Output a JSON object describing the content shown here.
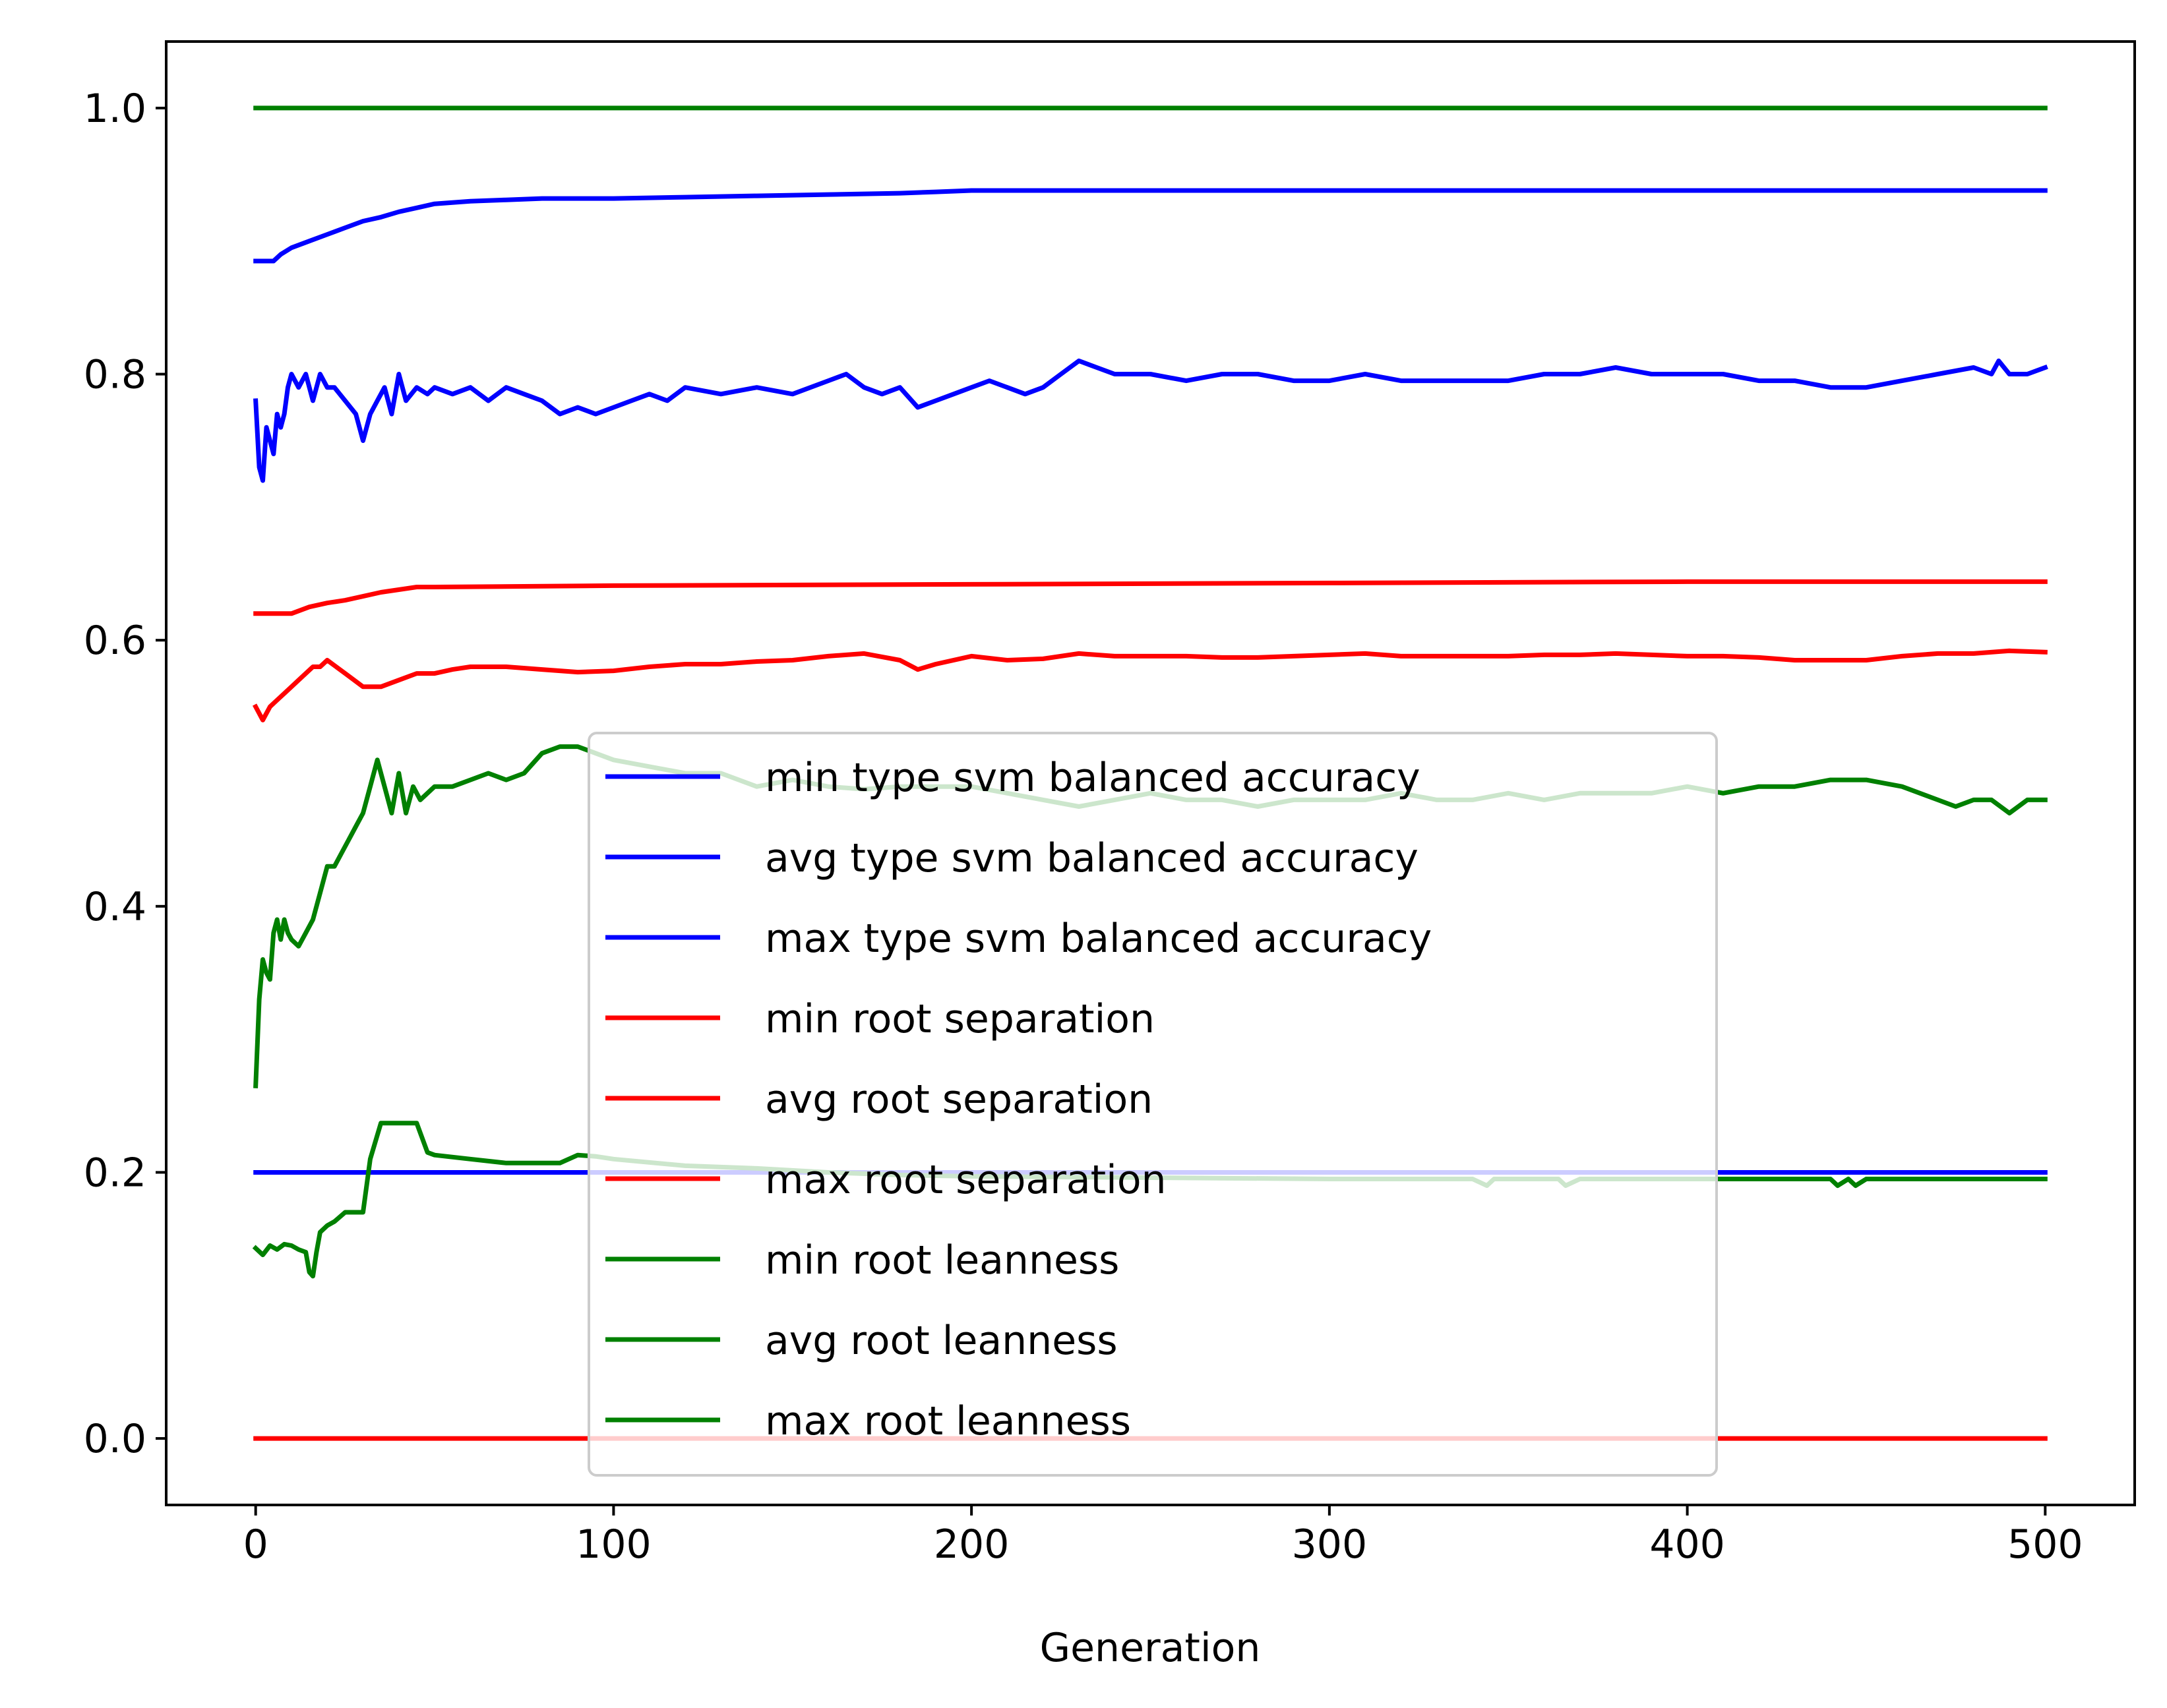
{
  "chart_data": {
    "type": "line",
    "title": "",
    "xlabel": "Generation",
    "ylabel": "",
    "xlim": [
      -25,
      525
    ],
    "ylim": [
      -0.05,
      1.05
    ],
    "xticks": [
      0,
      100,
      200,
      300,
      400,
      500
    ],
    "xtick_labels": [
      "0",
      "100",
      "200",
      "300",
      "400",
      "500"
    ],
    "yticks": [
      0.0,
      0.2,
      0.4,
      0.6,
      0.8,
      1.0
    ],
    "ytick_labels": [
      "0.0",
      "0.2",
      "0.4",
      "0.6",
      "0.8",
      "1.0"
    ],
    "grid": false,
    "legend_position": "center",
    "series": [
      {
        "name": "min type svm balanced accuracy",
        "color": "#0000ff",
        "x": [
          0,
          500
        ],
        "y": [
          0.2,
          0.2
        ]
      },
      {
        "name": "avg type svm balanced accuracy",
        "color": "#0000ff",
        "x": [
          0,
          1,
          2,
          3,
          4,
          5,
          6,
          7,
          8,
          9,
          10,
          12,
          14,
          16,
          18,
          20,
          22,
          25,
          28,
          30,
          32,
          34,
          36,
          38,
          40,
          42,
          45,
          48,
          50,
          55,
          60,
          65,
          70,
          75,
          80,
          85,
          90,
          95,
          100,
          105,
          110,
          115,
          120,
          130,
          140,
          150,
          160,
          165,
          170,
          175,
          180,
          185,
          190,
          195,
          200,
          205,
          210,
          215,
          220,
          225,
          230,
          235,
          240,
          250,
          260,
          270,
          280,
          290,
          300,
          310,
          320,
          330,
          340,
          350,
          360,
          370,
          380,
          390,
          400,
          410,
          420,
          430,
          440,
          450,
          460,
          470,
          480,
          485,
          487,
          490,
          495,
          500
        ],
        "y": [
          0.78,
          0.73,
          0.72,
          0.76,
          0.75,
          0.74,
          0.77,
          0.76,
          0.77,
          0.79,
          0.8,
          0.79,
          0.8,
          0.78,
          0.8,
          0.79,
          0.79,
          0.78,
          0.77,
          0.75,
          0.77,
          0.78,
          0.79,
          0.77,
          0.8,
          0.78,
          0.79,
          0.785,
          0.79,
          0.785,
          0.79,
          0.78,
          0.79,
          0.785,
          0.78,
          0.77,
          0.775,
          0.77,
          0.775,
          0.78,
          0.785,
          0.78,
          0.79,
          0.785,
          0.79,
          0.785,
          0.795,
          0.8,
          0.79,
          0.785,
          0.79,
          0.775,
          0.78,
          0.785,
          0.79,
          0.795,
          0.79,
          0.785,
          0.79,
          0.8,
          0.81,
          0.805,
          0.8,
          0.8,
          0.795,
          0.8,
          0.8,
          0.795,
          0.795,
          0.8,
          0.795,
          0.795,
          0.795,
          0.795,
          0.8,
          0.8,
          0.805,
          0.8,
          0.8,
          0.8,
          0.795,
          0.795,
          0.79,
          0.79,
          0.795,
          0.8,
          0.805,
          0.8,
          0.81,
          0.8,
          0.8,
          0.805
        ]
      },
      {
        "name": "max type svm balanced accuracy",
        "color": "#0000ff",
        "x": [
          0,
          5,
          7,
          10,
          15,
          20,
          25,
          30,
          35,
          40,
          45,
          50,
          60,
          70,
          80,
          90,
          100,
          120,
          140,
          160,
          180,
          190,
          200,
          250,
          300,
          400,
          500
        ],
        "y": [
          0.885,
          0.885,
          0.89,
          0.895,
          0.9,
          0.905,
          0.91,
          0.915,
          0.918,
          0.922,
          0.925,
          0.928,
          0.93,
          0.931,
          0.932,
          0.932,
          0.932,
          0.933,
          0.934,
          0.935,
          0.936,
          0.937,
          0.938,
          0.938,
          0.938,
          0.938,
          0.938
        ]
      },
      {
        "name": "min root separation",
        "color": "#ff0000",
        "x": [
          0,
          500
        ],
        "y": [
          0.0,
          0.0
        ]
      },
      {
        "name": "avg root separation",
        "color": "#ff0000",
        "x": [
          0,
          2,
          4,
          6,
          8,
          10,
          12,
          14,
          16,
          18,
          20,
          25,
          30,
          35,
          40,
          45,
          50,
          55,
          60,
          70,
          80,
          90,
          100,
          110,
          120,
          130,
          140,
          150,
          160,
          170,
          180,
          185,
          190,
          200,
          210,
          220,
          230,
          240,
          250,
          260,
          270,
          280,
          290,
          300,
          310,
          320,
          330,
          340,
          350,
          360,
          370,
          380,
          390,
          400,
          410,
          420,
          430,
          440,
          450,
          460,
          470,
          480,
          490,
          500
        ],
        "y": [
          0.55,
          0.54,
          0.55,
          0.555,
          0.56,
          0.565,
          0.57,
          0.575,
          0.58,
          0.58,
          0.585,
          0.575,
          0.565,
          0.565,
          0.57,
          0.575,
          0.575,
          0.578,
          0.58,
          0.58,
          0.578,
          0.576,
          0.577,
          0.58,
          0.582,
          0.582,
          0.584,
          0.585,
          0.588,
          0.59,
          0.585,
          0.578,
          0.582,
          0.588,
          0.585,
          0.586,
          0.59,
          0.588,
          0.588,
          0.588,
          0.587,
          0.587,
          0.588,
          0.589,
          0.59,
          0.588,
          0.588,
          0.588,
          0.588,
          0.589,
          0.589,
          0.59,
          0.589,
          0.588,
          0.588,
          0.587,
          0.585,
          0.585,
          0.585,
          0.588,
          0.59,
          0.59,
          0.592,
          0.591
        ]
      },
      {
        "name": "max root separation",
        "color": "#ff0000",
        "x": [
          0,
          10,
          15,
          20,
          25,
          30,
          35,
          40,
          45,
          50,
          100,
          200,
          300,
          400,
          500
        ],
        "y": [
          0.62,
          0.62,
          0.625,
          0.628,
          0.63,
          0.633,
          0.636,
          0.638,
          0.64,
          0.64,
          0.641,
          0.642,
          0.643,
          0.644,
          0.644
        ]
      },
      {
        "name": "min root leanness",
        "color": "#008000",
        "x": [
          0,
          2,
          4,
          6,
          8,
          10,
          12,
          14,
          15,
          16,
          17,
          18,
          20,
          22,
          25,
          28,
          30,
          32,
          35,
          40,
          45,
          48,
          50,
          60,
          70,
          80,
          85,
          90,
          95,
          100,
          120,
          140,
          160,
          180,
          200,
          250,
          300,
          340,
          344,
          346,
          350,
          364,
          366,
          370,
          400,
          440,
          442,
          445,
          447,
          450,
          500
        ],
        "y": [
          0.143,
          0.138,
          0.145,
          0.142,
          0.146,
          0.145,
          0.142,
          0.14,
          0.125,
          0.122,
          0.14,
          0.155,
          0.16,
          0.163,
          0.17,
          0.17,
          0.17,
          0.21,
          0.237,
          0.237,
          0.237,
          0.215,
          0.213,
          0.21,
          0.207,
          0.207,
          0.207,
          0.213,
          0.212,
          0.21,
          0.205,
          0.203,
          0.2,
          0.198,
          0.197,
          0.196,
          0.195,
          0.195,
          0.19,
          0.195,
          0.195,
          0.195,
          0.19,
          0.195,
          0.195,
          0.195,
          0.19,
          0.195,
          0.19,
          0.195,
          0.195
        ]
      },
      {
        "name": "avg root leanness",
        "color": "#008000",
        "x": [
          0,
          1,
          2,
          3,
          4,
          5,
          6,
          7,
          8,
          9,
          10,
          12,
          14,
          16,
          18,
          20,
          22,
          24,
          26,
          28,
          30,
          32,
          34,
          36,
          38,
          40,
          42,
          44,
          46,
          50,
          55,
          60,
          65,
          70,
          75,
          80,
          85,
          90,
          95,
          100,
          110,
          120,
          130,
          140,
          150,
          160,
          170,
          180,
          190,
          200,
          210,
          220,
          230,
          240,
          250,
          260,
          270,
          280,
          290,
          300,
          310,
          320,
          330,
          340,
          350,
          360,
          370,
          380,
          390,
          400,
          410,
          420,
          430,
          440,
          450,
          460,
          470,
          475,
          480,
          485,
          490,
          495,
          500
        ],
        "y": [
          0.265,
          0.33,
          0.36,
          0.35,
          0.345,
          0.38,
          0.39,
          0.375,
          0.39,
          0.38,
          0.375,
          0.37,
          0.38,
          0.39,
          0.41,
          0.43,
          0.43,
          0.44,
          0.45,
          0.46,
          0.47,
          0.49,
          0.51,
          0.49,
          0.47,
          0.5,
          0.47,
          0.49,
          0.48,
          0.49,
          0.49,
          0.495,
          0.5,
          0.495,
          0.5,
          0.515,
          0.52,
          0.52,
          0.515,
          0.51,
          0.505,
          0.5,
          0.5,
          0.49,
          0.495,
          0.49,
          0.488,
          0.49,
          0.49,
          0.49,
          0.485,
          0.48,
          0.475,
          0.48,
          0.485,
          0.48,
          0.48,
          0.475,
          0.48,
          0.48,
          0.48,
          0.485,
          0.48,
          0.48,
          0.485,
          0.48,
          0.485,
          0.485,
          0.485,
          0.49,
          0.485,
          0.49,
          0.49,
          0.495,
          0.495,
          0.49,
          0.48,
          0.475,
          0.48,
          0.48,
          0.47,
          0.48,
          0.48
        ]
      },
      {
        "name": "max root leanness",
        "color": "#008000",
        "x": [
          0,
          500
        ],
        "y": [
          1.0,
          1.0
        ]
      }
    ]
  }
}
